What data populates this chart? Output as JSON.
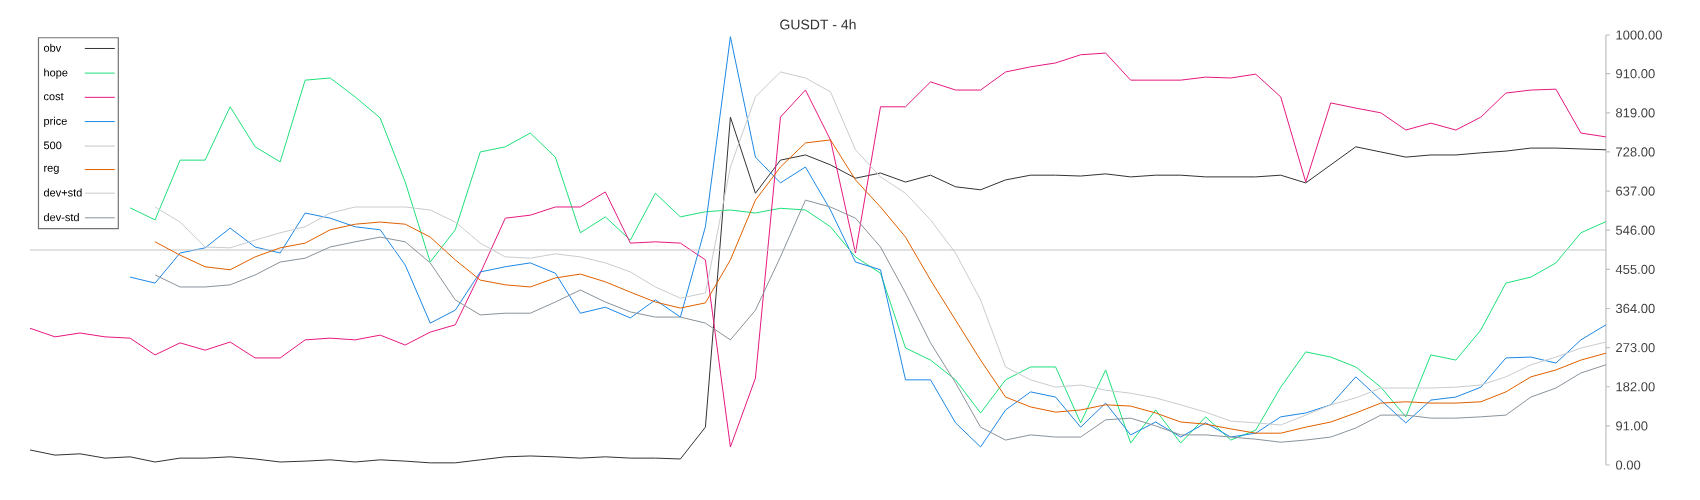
{
  "chart_data": {
    "type": "line",
    "title": "GUSDT - 4h",
    "categories": [
      null,
      null,
      null,
      null,
      null,
      null,
      null,
      null,
      null,
      null,
      null,
      null,
      null,
      null,
      null,
      null,
      null,
      null,
      null,
      null,
      null,
      null,
      null,
      null,
      null,
      null,
      null,
      null,
      null,
      null,
      null,
      null,
      null,
      null,
      null,
      null,
      null,
      null,
      null,
      null,
      null,
      null,
      null,
      null,
      null,
      null,
      null,
      null,
      null,
      null,
      null,
      null,
      null,
      null,
      null,
      null,
      null,
      null,
      null,
      null,
      null,
      null,
      null,
      null
    ],
    "series": [
      {
        "name": "obv",
        "color": "#333333",
        "values": [
          35,
          23,
          26,
          16,
          19,
          7,
          16,
          16,
          19,
          14,
          7,
          9,
          12,
          7,
          12,
          9,
          5,
          5,
          12,
          19,
          21,
          19,
          16,
          19,
          16,
          16,
          14,
          88,
          809,
          632,
          709,
          721,
          698,
          667,
          679,
          658,
          674,
          647,
          640,
          663,
          674,
          674,
          672,
          677,
          670,
          674,
          674,
          670,
          670,
          670,
          674,
          656,
          698,
          740,
          728,
          716,
          721,
          721,
          726,
          730,
          737,
          737,
          735,
          733
        ]
      },
      {
        "name": "hope",
        "color": "#1ee07a",
        "values": [
          null,
          null,
          null,
          null,
          598,
          570,
          709,
          709,
          833,
          740,
          705,
          895,
          900,
          856,
          807,
          658,
          472,
          547,
          728,
          740,
          772,
          716,
          540,
          577,
          523,
          632,
          577,
          589,
          593,
          586,
          597,
          593,
          554,
          484,
          446,
          272,
          244,
          198,
          121,
          198,
          228,
          228,
          98,
          221,
          51,
          128,
          51,
          112,
          58,
          81,
          181,
          263,
          251,
          228,
          181,
          112,
          256,
          244,
          314,
          423,
          437,
          470,
          540,
          566
        ]
      },
      {
        "name": "cost",
        "color": "#e6197f",
        "values": [
          318,
          298,
          307,
          298,
          295,
          256,
          284,
          267,
          286,
          249,
          249,
          291,
          295,
          291,
          302,
          279,
          309,
          326,
          446,
          574,
          581,
          600,
          600,
          635,
          516,
          519,
          516,
          477,
          42,
          202,
          809,
          872,
          756,
          493,
          833,
          833,
          891,
          872,
          872,
          914,
          926,
          935,
          954,
          958,
          895,
          895,
          895,
          902,
          900,
          909,
          856,
          658,
          842,
          830,
          819,
          779,
          795,
          779,
          809,
          865,
          872,
          874,
          772,
          763
        ]
      },
      {
        "name": "price",
        "color": "#1e88e5",
        "values": [
          null,
          null,
          null,
          null,
          437,
          423,
          493,
          505,
          551,
          507,
          493,
          586,
          574,
          554,
          547,
          465,
          330,
          360,
          449,
          461,
          470,
          446,
          353,
          367,
          342,
          384,
          344,
          554,
          996,
          716,
          656,
          693,
          593,
          472,
          454,
          198,
          198,
          98,
          42,
          128,
          170,
          158,
          88,
          144,
          70,
          100,
          65,
          98,
          65,
          74,
          112,
          121,
          140,
          205,
          151,
          98,
          151,
          158,
          181,
          249,
          251,
          237,
          291,
          326
        ]
      },
      {
        "name": "500",
        "color": "#c4c4c4",
        "values": [
          500,
          500,
          500,
          500,
          500,
          500,
          500,
          500,
          500,
          500,
          500,
          500,
          500,
          500,
          500,
          500,
          500,
          500,
          500,
          500,
          500,
          500,
          500,
          500,
          500,
          500,
          500,
          500,
          500,
          500,
          500,
          500,
          500,
          500,
          500,
          500,
          500,
          500,
          500,
          500,
          500,
          500,
          500,
          500,
          500,
          500,
          500,
          500,
          500,
          500,
          500,
          500,
          500,
          500,
          500,
          500,
          500,
          500,
          500,
          500,
          500,
          500,
          500,
          500
        ]
      },
      {
        "name": "reg",
        "color": "#e06000",
        "values": [
          null,
          null,
          null,
          null,
          null,
          519,
          488,
          461,
          454,
          484,
          505,
          516,
          547,
          560,
          565,
          560,
          530,
          477,
          430,
          419,
          414,
          435,
          444,
          426,
          402,
          379,
          365,
          377,
          477,
          616,
          693,
          749,
          756,
          663,
          600,
          530,
          430,
          337,
          244,
          158,
          135,
          123,
          128,
          140,
          137,
          121,
          100,
          95,
          84,
          74,
          74,
          88,
          100,
          121,
          144,
          147,
          144,
          144,
          147,
          170,
          205,
          221,
          244,
          260
        ]
      },
      {
        "name": "dev+std",
        "color": "#c8ccd0",
        "values": [
          null,
          null,
          null,
          null,
          null,
          600,
          565,
          507,
          505,
          523,
          540,
          554,
          586,
          600,
          600,
          600,
          593,
          565,
          516,
          484,
          481,
          491,
          484,
          470,
          449,
          414,
          388,
          400,
          693,
          856,
          914,
          900,
          868,
          733,
          670,
          632,
          570,
          493,
          384,
          228,
          198,
          181,
          186,
          174,
          167,
          156,
          140,
          123,
          102,
          98,
          93,
          116,
          140,
          156,
          179,
          179,
          179,
          181,
          186,
          205,
          233,
          251,
          272,
          286
        ]
      },
      {
        "name": "dev-std",
        "color": "#8a939b",
        "values": [
          null,
          null,
          null,
          null,
          null,
          442,
          414,
          414,
          419,
          442,
          472,
          481,
          507,
          519,
          530,
          519,
          470,
          384,
          349,
          353,
          353,
          379,
          407,
          379,
          356,
          344,
          344,
          330,
          291,
          360,
          484,
          616,
          600,
          574,
          507,
          400,
          284,
          191,
          88,
          58,
          70,
          65,
          65,
          105,
          109,
          91,
          70,
          70,
          65,
          60,
          53,
          58,
          65,
          86,
          116,
          116,
          109,
          109,
          112,
          116,
          158,
          179,
          214,
          233
        ]
      }
    ],
    "ylim": [
      0,
      1000
    ],
    "yticks": [
      {
        "value": 0,
        "label": "0.00"
      },
      {
        "value": 91,
        "label": "91.00"
      },
      {
        "value": 182,
        "label": "182.00"
      },
      {
        "value": 273,
        "label": "273.00"
      },
      {
        "value": 364,
        "label": "364.00"
      },
      {
        "value": 455,
        "label": "455.00"
      },
      {
        "value": 546,
        "label": "546.00"
      },
      {
        "value": 637,
        "label": "637.00"
      },
      {
        "value": 728,
        "label": "728.00"
      },
      {
        "value": 819,
        "label": "819.00"
      },
      {
        "value": 910,
        "label": "910.00"
      },
      {
        "value": 1000,
        "label": "1000.00"
      }
    ],
    "tick_labels": "y",
    "legend": "top left"
  }
}
